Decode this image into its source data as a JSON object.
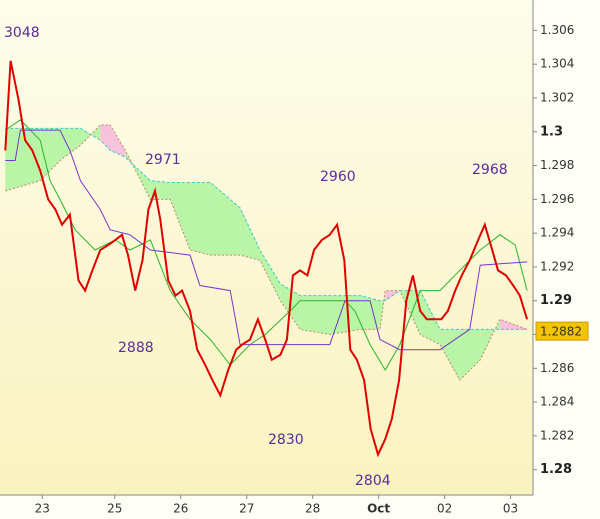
{
  "chart_data": {
    "type": "line",
    "xlim": [
      -0.64,
      7.44
    ],
    "ylim": [
      1.2785,
      1.3078
    ],
    "xticks": [
      {
        "value": 0,
        "label": "23"
      },
      {
        "value": 1.1,
        "label": "25"
      },
      {
        "value": 2.1,
        "label": "26"
      },
      {
        "value": 3.1,
        "label": "27"
      },
      {
        "value": 4.1,
        "label": "28"
      },
      {
        "value": 5.1,
        "label": "Oct"
      },
      {
        "value": 6.1,
        "label": "02"
      },
      {
        "value": 7.1,
        "label": "03"
      }
    ],
    "yticks": [
      1.306,
      1.304,
      1.302,
      1.3,
      1.298,
      1.296,
      1.294,
      1.292,
      1.29,
      1.288,
      1.286,
      1.284,
      1.282,
      1.28
    ],
    "last_price": 1.2882,
    "last_price_color": "#f5c400",
    "annotations": [
      "3048",
      "2971",
      "2888",
      "2960",
      "2830",
      "2804",
      "2968"
    ],
    "cloud": {
      "x": [
        -0.56,
        -0.03,
        0.27,
        0.58,
        0.88,
        1.03,
        1.26,
        1.64,
        1.94,
        2.24,
        2.55,
        3.0,
        3.3,
        3.61,
        3.91,
        4.36,
        4.82,
        5.12,
        5.2,
        5.42,
        5.73,
        6.03,
        6.33,
        6.64,
        6.94,
        7.35
      ],
      "span_a": [
        1.3002,
        1.3002,
        1.3002,
        1.3002,
        1.2995,
        1.2989,
        1.2985,
        1.2971,
        1.297,
        1.297,
        1.297,
        1.2955,
        1.293,
        1.291,
        1.2903,
        1.2903,
        1.2903,
        1.29,
        1.29,
        1.2906,
        1.2906,
        1.2883,
        1.2883,
        1.2883,
        1.2883,
        1.2883
      ],
      "span_b": [
        1.2965,
        1.2971,
        1.2983,
        1.2992,
        1.3004,
        1.3004,
        1.2989,
        1.296,
        1.296,
        1.293,
        1.2927,
        1.2927,
        1.2924,
        1.29,
        1.2883,
        1.288,
        1.2883,
        1.2883,
        1.2906,
        1.2906,
        1.288,
        1.2874,
        1.2853,
        1.2865,
        1.2889,
        1.2883
      ],
      "up_color": "#b9f5a6",
      "down_color": "#f8c2dc",
      "span_a_color": "#3cc8c8",
      "span_b_color": "#c0866a"
    },
    "series": [
      {
        "color": "#2ab52a",
        "x": [
          -0.56,
          -0.33,
          -0.03,
          0.12,
          0.27,
          0.5,
          0.8,
          1.11,
          1.33,
          1.64,
          1.94,
          2.24,
          2.55,
          2.85,
          3.15,
          3.38,
          3.76,
          3.91,
          4.36,
          4.59,
          4.74,
          4.97,
          5.2,
          5.42,
          5.73,
          6.03,
          6.33,
          6.64,
          6.94,
          7.17,
          7.35
        ],
        "values": [
          1.3001,
          1.3007,
          1.2995,
          1.2971,
          1.296,
          1.2942,
          1.293,
          1.2936,
          1.293,
          1.2936,
          1.2906,
          1.2889,
          1.2877,
          1.2862,
          1.2874,
          1.288,
          1.2894,
          1.29,
          1.29,
          1.29,
          1.2894,
          1.2874,
          1.2859,
          1.2874,
          1.2906,
          1.2906,
          1.2918,
          1.293,
          1.2939,
          1.2933,
          1.2906
        ]
      },
      {
        "color": "#7a35c8",
        "x": [
          -0.56,
          -0.41,
          -0.33,
          0.27,
          0.42,
          0.58,
          0.88,
          1.03,
          1.33,
          1.64,
          2.24,
          2.39,
          2.85,
          3.0,
          4.36,
          4.59,
          4.97,
          5.12,
          5.42,
          6.03,
          6.48,
          6.64,
          7.35
        ],
        "values": [
          1.2983,
          1.2983,
          1.3001,
          1.3001,
          1.2989,
          1.2971,
          1.2954,
          1.2942,
          1.2939,
          1.293,
          1.2927,
          1.2909,
          1.2906,
          1.2874,
          1.2874,
          1.29,
          1.29,
          1.2877,
          1.2871,
          1.2871,
          1.2883,
          1.2921,
          1.2923
        ]
      },
      {
        "color": "#e00000",
        "x": [
          -0.56,
          -0.48,
          -0.36,
          -0.26,
          -0.15,
          -0.03,
          0.09,
          0.2,
          0.3,
          0.42,
          0.55,
          0.65,
          0.76,
          0.88,
          1.0,
          1.11,
          1.21,
          1.3,
          1.41,
          1.52,
          1.61,
          1.71,
          1.79,
          1.91,
          2.02,
          2.12,
          2.24,
          2.35,
          2.47,
          2.58,
          2.7,
          2.82,
          2.94,
          3.03,
          3.15,
          3.27,
          3.38,
          3.48,
          3.61,
          3.71,
          3.8,
          3.91,
          4.02,
          4.12,
          4.24,
          4.36,
          4.47,
          4.58,
          4.67,
          4.77,
          4.88,
          4.98,
          5.09,
          5.2,
          5.3,
          5.41,
          5.52,
          5.62,
          5.73,
          5.83,
          5.94,
          6.05,
          6.15,
          6.26,
          6.36,
          6.48,
          6.61,
          6.71,
          6.8,
          6.91,
          7.03,
          7.14,
          7.24,
          7.35
        ],
        "values": [
          1.2989,
          1.3042,
          1.3019,
          1.2995,
          1.2989,
          1.2977,
          1.296,
          1.2954,
          1.2945,
          1.2951,
          1.2912,
          1.2906,
          1.2918,
          1.293,
          1.2933,
          1.2936,
          1.2939,
          1.2927,
          1.2906,
          1.2924,
          1.2954,
          1.2965,
          1.2948,
          1.2912,
          1.2903,
          1.2906,
          1.2894,
          1.2871,
          1.2862,
          1.2853,
          1.2844,
          1.2859,
          1.2871,
          1.2874,
          1.2877,
          1.2889,
          1.2877,
          1.2865,
          1.2868,
          1.2877,
          1.2915,
          1.2918,
          1.2915,
          1.293,
          1.2936,
          1.2939,
          1.2945,
          1.2924,
          1.2871,
          1.2865,
          1.2853,
          1.2824,
          1.2809,
          1.2818,
          1.283,
          1.2853,
          1.29,
          1.2915,
          1.2894,
          1.2889,
          1.2889,
          1.2889,
          1.2894,
          1.2906,
          1.2915,
          1.2924,
          1.2936,
          1.2945,
          1.2933,
          1.2918,
          1.2915,
          1.2909,
          1.2903,
          1.2889
        ]
      }
    ]
  }
}
